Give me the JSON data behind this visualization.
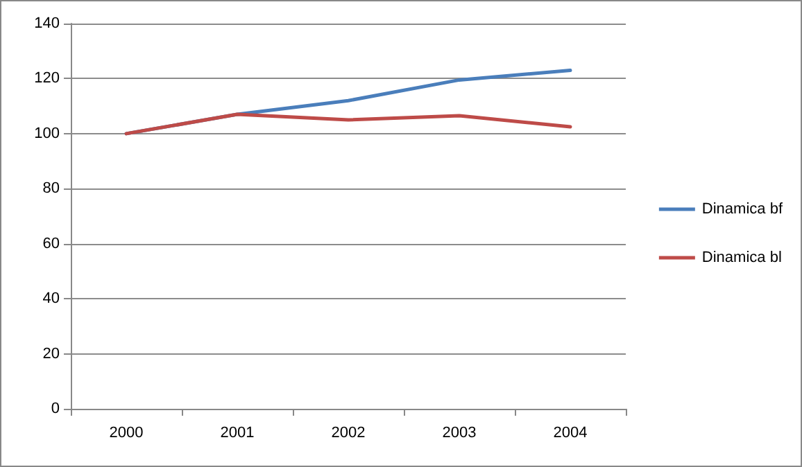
{
  "chart_data": {
    "type": "line",
    "categories": [
      "2000",
      "2001",
      "2002",
      "2003",
      "2004"
    ],
    "series": [
      {
        "name": "Dinamica bf",
        "color": "#4a7ebb",
        "values": [
          100,
          107,
          112,
          119.5,
          123
        ]
      },
      {
        "name": "Dinamica bl",
        "color": "#be4b48",
        "values": [
          100,
          107,
          105,
          106.5,
          102.5
        ]
      }
    ],
    "ylim": [
      0,
      140
    ],
    "yticks": [
      0,
      20,
      40,
      60,
      80,
      100,
      120,
      140
    ],
    "grid": "y",
    "legend": "right",
    "marker": "none",
    "line_style": "solid"
  }
}
